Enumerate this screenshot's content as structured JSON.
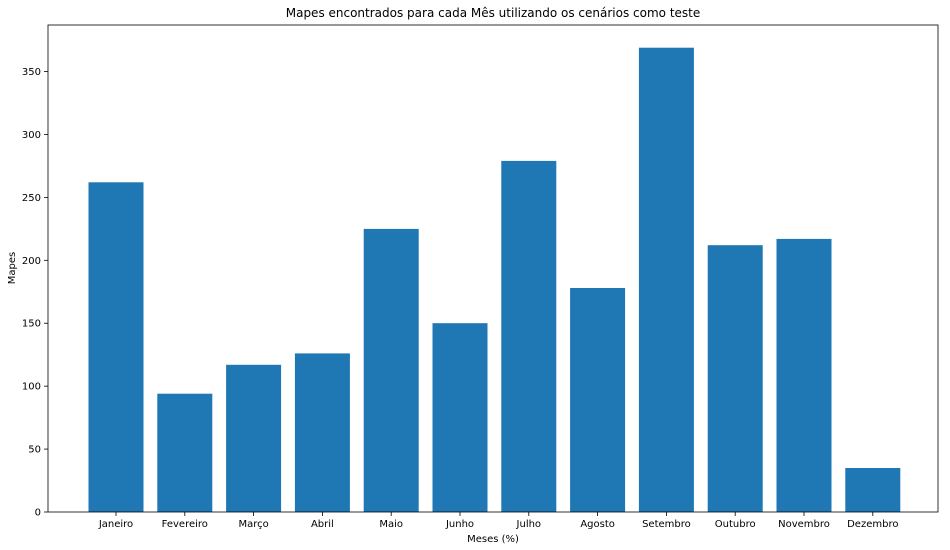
{
  "chart_data": {
    "type": "bar",
    "title": "Mapes encontrados para cada Mês utilizando os cenários como teste",
    "xlabel": "Meses (%)",
    "ylabel": "Mapes",
    "categories": [
      "Janeiro",
      "Fevereiro",
      "Março",
      "Abril",
      "Maio",
      "Junho",
      "Julho",
      "Agosto",
      "Setembro",
      "Outubro",
      "Novembro",
      "Dezembro"
    ],
    "values": [
      262,
      94,
      117,
      126,
      225,
      150,
      279,
      178,
      369,
      212,
      217,
      35
    ],
    "ylim": [
      0,
      387
    ],
    "yticks": [
      0,
      50,
      100,
      150,
      200,
      250,
      300,
      350
    ],
    "grid": false,
    "bar_color": "#1f77b4"
  }
}
